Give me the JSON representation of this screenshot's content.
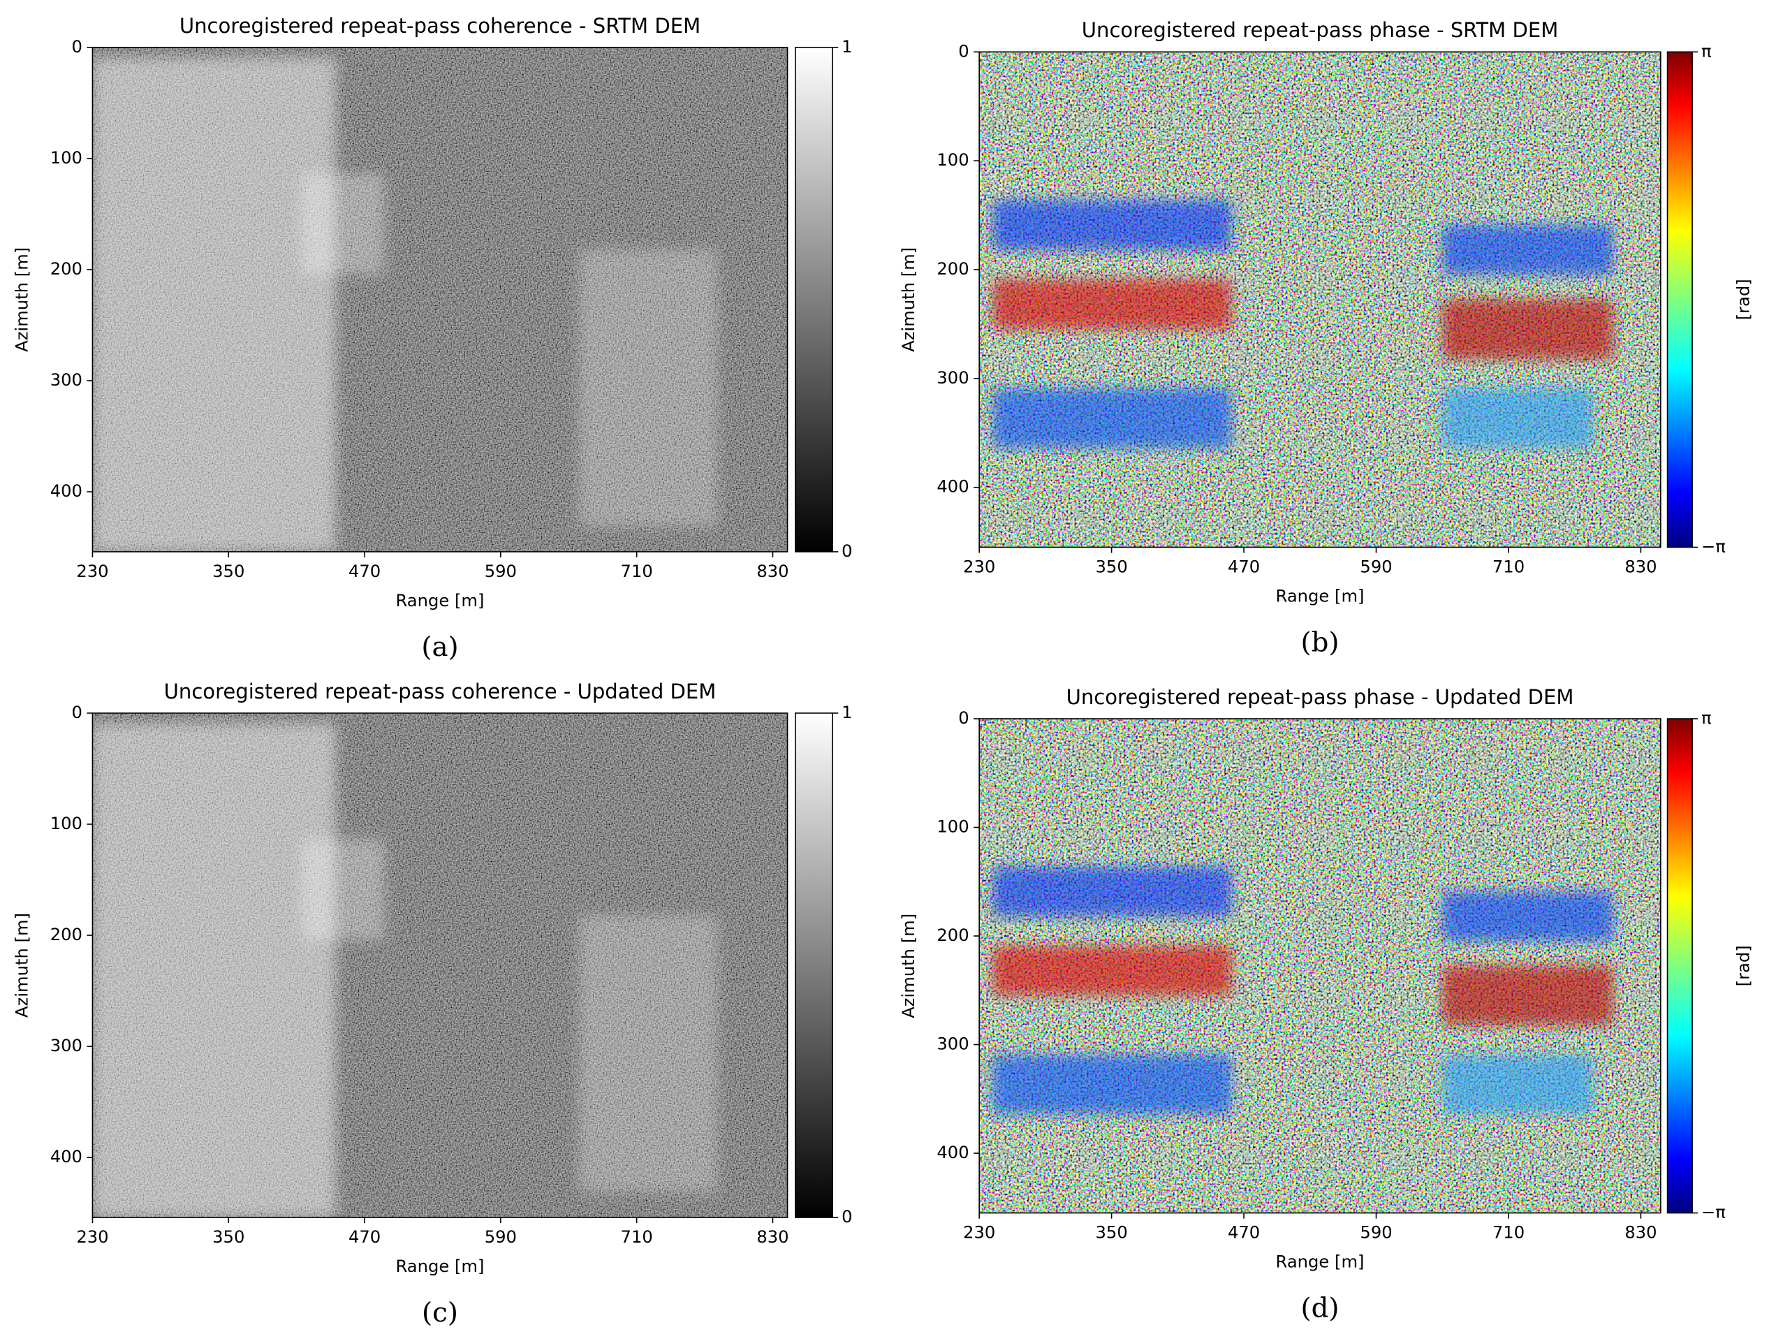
{
  "chart_data": [
    {
      "type": "heatmap",
      "title": "Uncoregistered repeat-pass coherence - SRTM DEM",
      "xlabel": "Range [m]",
      "ylabel": "Azimuth [m]",
      "xlim": [
        230,
        843
      ],
      "ylim": [
        454,
        0
      ],
      "xticks": [
        230,
        350,
        470,
        590,
        710,
        830
      ],
      "yticks": [
        0,
        100,
        200,
        300,
        400
      ],
      "colormap": "gray",
      "clim": [
        0,
        1
      ],
      "cticks": [
        0,
        1
      ],
      "caption": "(a)"
    },
    {
      "type": "heatmap",
      "title": "Uncoregistered repeat-pass phase - SRTM DEM",
      "xlabel": "Range [m]",
      "ylabel": "Azimuth [m]",
      "xlim": [
        230,
        848
      ],
      "ylim": [
        455,
        0
      ],
      "xticks": [
        230,
        350,
        470,
        590,
        710,
        830
      ],
      "yticks": [
        0,
        100,
        200,
        300,
        400
      ],
      "colormap": "jet",
      "clim": [
        -3.14159,
        3.14159
      ],
      "cticks": [
        {
          "value": -3.14159,
          "label": "−π"
        },
        {
          "value": 3.14159,
          "label": "π"
        }
      ],
      "clabel": "[rad]",
      "caption": "(b)"
    },
    {
      "type": "heatmap",
      "title": "Uncoregistered repeat-pass coherence - Updated DEM",
      "xlabel": "Range [m]",
      "ylabel": "Azimuth [m]",
      "xlim": [
        230,
        843
      ],
      "ylim": [
        454,
        0
      ],
      "xticks": [
        230,
        350,
        470,
        590,
        710,
        830
      ],
      "yticks": [
        0,
        100,
        200,
        300,
        400
      ],
      "colormap": "gray",
      "clim": [
        0,
        1
      ],
      "cticks": [
        0,
        1
      ],
      "caption": "(c)"
    },
    {
      "type": "heatmap",
      "title": "Uncoregistered repeat-pass phase - Updated DEM",
      "xlabel": "Range [m]",
      "ylabel": "Azimuth [m]",
      "xlim": [
        230,
        848
      ],
      "ylim": [
        455,
        0
      ],
      "xticks": [
        230,
        350,
        470,
        590,
        710,
        830
      ],
      "yticks": [
        0,
        100,
        200,
        300,
        400
      ],
      "colormap": "jet",
      "clim": [
        -3.14159,
        3.14159
      ],
      "cticks": [
        {
          "value": -3.14159,
          "label": "−π"
        },
        {
          "value": 3.14159,
          "label": "π"
        }
      ],
      "clabel": "[rad]",
      "caption": "(d)"
    }
  ]
}
